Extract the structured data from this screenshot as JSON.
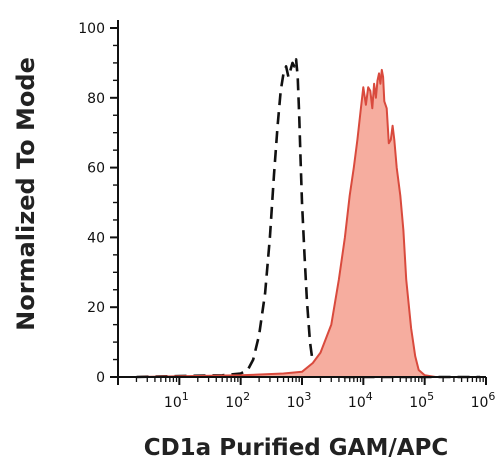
{
  "chart_data": {
    "type": "area",
    "xlabel": "CD1a Purified GAM/APC",
    "ylabel": "Normalized To Mode",
    "x_scale": "log",
    "xlim": [
      1,
      1000000
    ],
    "ylim": [
      0,
      100
    ],
    "grid": false,
    "legend": "none",
    "y_ticks": [
      "0",
      "20",
      "40",
      "60",
      "80",
      "100"
    ],
    "y_tick_values": [
      0,
      20,
      40,
      60,
      80,
      100
    ],
    "x_tick_labels": [
      {
        "base": "10",
        "exp": "1",
        "value": 10
      },
      {
        "base": "10",
        "exp": "2",
        "value": 100
      },
      {
        "base": "10",
        "exp": "3",
        "value": 1000
      },
      {
        "base": "10",
        "exp": "4",
        "value": 10000
      },
      {
        "base": "10",
        "exp": "5",
        "value": 100000
      },
      {
        "base": "10",
        "exp": "6",
        "value": 1000000
      }
    ],
    "series": [
      {
        "style": "dashed",
        "color": "#111111",
        "x": [
          2,
          10,
          50,
          100,
          130,
          160,
          200,
          250,
          300,
          350,
          400,
          450,
          500,
          550,
          600,
          650,
          700,
          750,
          800,
          850,
          900,
          950,
          1000,
          1100,
          1200,
          1350,
          1500,
          1800,
          2500,
          5000,
          20000,
          100000,
          800000
        ],
        "y": [
          0,
          0.3,
          0.5,
          1,
          2,
          5,
          12,
          24,
          40,
          58,
          72,
          82,
          87,
          89,
          86,
          88,
          90,
          89,
          91,
          86,
          75,
          62,
          50,
          35,
          22,
          10,
          4,
          1,
          0.3,
          0,
          0,
          0,
          0
        ]
      },
      {
        "style": "filled",
        "color": "#d94a3d",
        "fill": "#f6ad9f",
        "x": [
          2,
          100,
          500,
          1000,
          1500,
          2000,
          3000,
          4000,
          5000,
          6000,
          7000,
          8000,
          9000,
          10000,
          11000,
          12000,
          13000,
          14000,
          15000,
          16000,
          17000,
          18000,
          19000,
          20000,
          21000,
          22000,
          24000,
          26000,
          28000,
          30000,
          32000,
          35000,
          40000,
          45000,
          50000,
          60000,
          70000,
          80000,
          100000,
          150000,
          800000
        ],
        "y": [
          0,
          0.5,
          1,
          1.5,
          4,
          7,
          15,
          28,
          40,
          52,
          60,
          68,
          76,
          83,
          78,
          83,
          82,
          77,
          84,
          80,
          85,
          87,
          84,
          88,
          86,
          79,
          77,
          67,
          68,
          72,
          68,
          60,
          52,
          42,
          28,
          14,
          6,
          2,
          0.5,
          0,
          0
        ]
      }
    ]
  }
}
